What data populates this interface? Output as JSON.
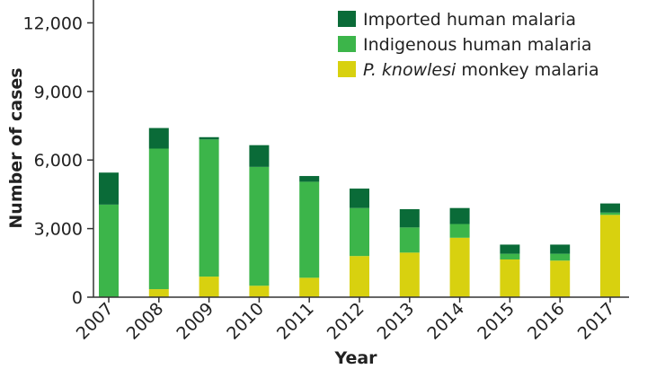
{
  "chart_data": {
    "type": "bar",
    "stacked": true,
    "categories": [
      "2007",
      "2008",
      "2009",
      "2010",
      "2011",
      "2012",
      "2013",
      "2014",
      "2015",
      "2016",
      "2017"
    ],
    "series": [
      {
        "name": "P. knowlesi monkey malaria",
        "color": "#d8d10f",
        "values": [
          0,
          350,
          900,
          500,
          850,
          1800,
          1950,
          2600,
          1650,
          1600,
          3600
        ]
      },
      {
        "name": "Indigenous human malaria",
        "color": "#3cb54a",
        "values": [
          4050,
          6150,
          6000,
          5200,
          4200,
          2100,
          1100,
          600,
          250,
          300,
          100
        ]
      },
      {
        "name": "Imported human malaria",
        "color": "#0a6b38",
        "values": [
          1400,
          900,
          100,
          950,
          250,
          850,
          800,
          700,
          400,
          400,
          400
        ]
      }
    ],
    "ylim": [
      0,
      13000
    ],
    "yticks": [
      0,
      3000,
      6000,
      9000,
      12000
    ],
    "ytick_labels": [
      "0",
      "3,000",
      "6,000",
      "9,000",
      "12,000"
    ],
    "xlabel": "Year",
    "ylabel": "Number of cases",
    "legend_order": [
      2,
      1,
      0
    ],
    "legend_labels": [
      {
        "italic": "",
        "rest": "Imported human malaria"
      },
      {
        "italic": "",
        "rest": "Indigenous human malaria"
      },
      {
        "italic": "P. knowlesi",
        "rest": " monkey malaria"
      }
    ],
    "legend_position": "top-right",
    "grid": false
  }
}
